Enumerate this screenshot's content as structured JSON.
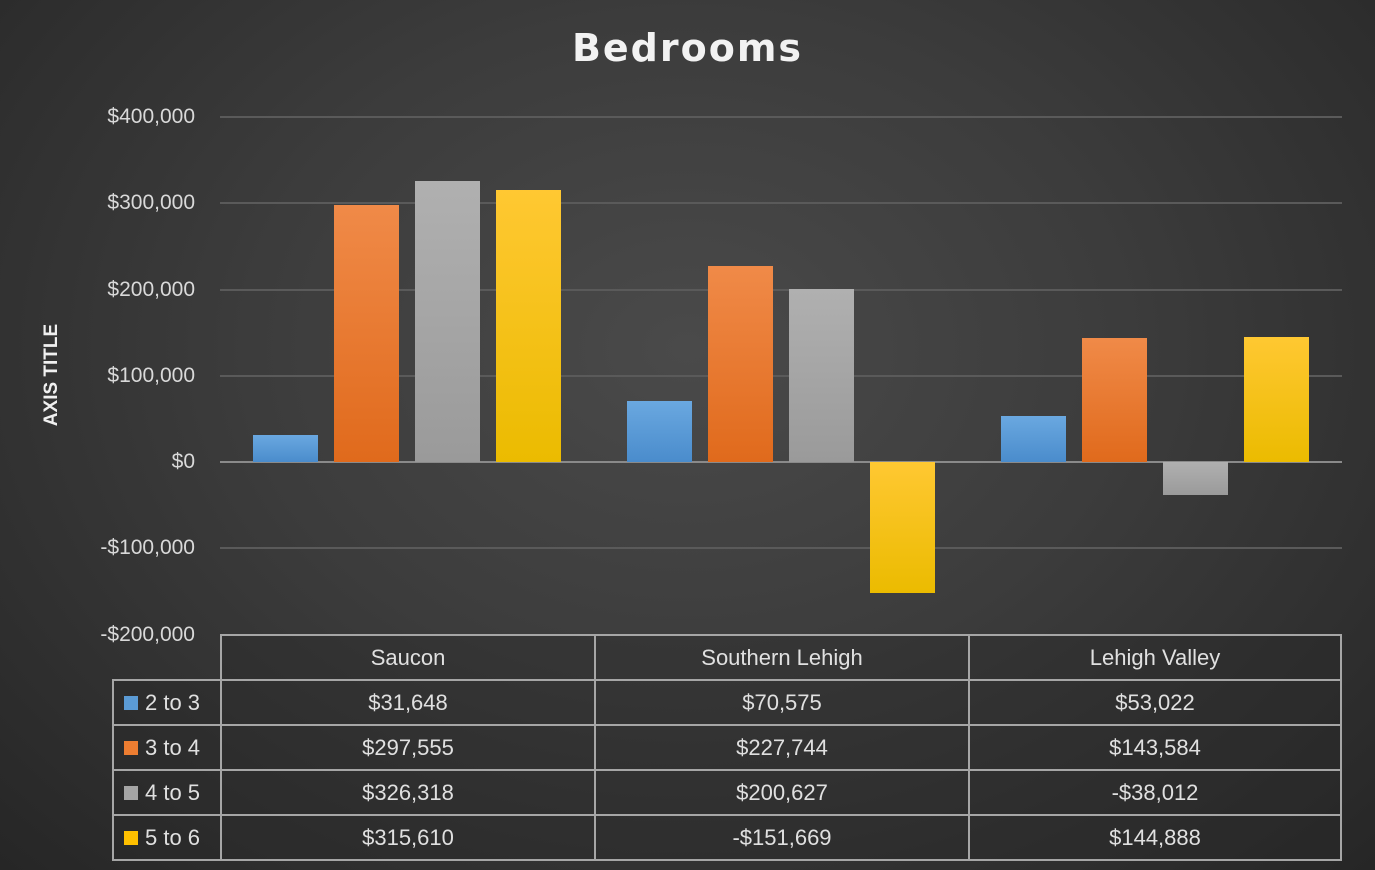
{
  "chart": {
    "title": "Bedrooms",
    "ylabel": "AXIS TITLE",
    "yticks": [
      "$400,000",
      "$300,000",
      "$200,000",
      "$100,000",
      "$0",
      "-$100,000",
      "-$200,000"
    ]
  },
  "table": {
    "headers": [
      "Saucon",
      "Southern Lehigh",
      "Lehigh Valley"
    ],
    "rows": [
      {
        "label": "2 to 3",
        "color": "#5b9bd5",
        "values": [
          "$31,648",
          "$70,575",
          "$53,022"
        ]
      },
      {
        "label": "3 to 4",
        "color": "#ed7d31",
        "values": [
          "$297,555",
          "$227,744",
          "$143,584"
        ]
      },
      {
        "label": "4 to 5",
        "color": "#a5a5a5",
        "values": [
          "$326,318",
          "$200,627",
          "-$38,012"
        ]
      },
      {
        "label": "5 to 6",
        "color": "#ffc000",
        "values": [
          "$315,610",
          "-$151,669",
          "$144,888"
        ]
      }
    ]
  },
  "chart_data": {
    "type": "bar",
    "title": "Bedrooms",
    "xlabel": "",
    "ylabel": "AXIS TITLE",
    "ylim": [
      -200000,
      400000
    ],
    "yticks": [
      -200000,
      -100000,
      0,
      100000,
      200000,
      300000,
      400000
    ],
    "grid": true,
    "legend_position": "data-table",
    "categories": [
      "Saucon",
      "Southern Lehigh",
      "Lehigh Valley"
    ],
    "series": [
      {
        "name": "2 to 3",
        "color": "#5b9bd5",
        "values": [
          31648,
          70575,
          53022
        ]
      },
      {
        "name": "3 to 4",
        "color": "#ed7d31",
        "values": [
          297555,
          227744,
          143584
        ]
      },
      {
        "name": "4 to 5",
        "color": "#a5a5a5",
        "values": [
          326318,
          200627,
          -38012
        ]
      },
      {
        "name": "5 to 6",
        "color": "#ffc000",
        "values": [
          315610,
          -151669,
          144888
        ]
      }
    ]
  }
}
